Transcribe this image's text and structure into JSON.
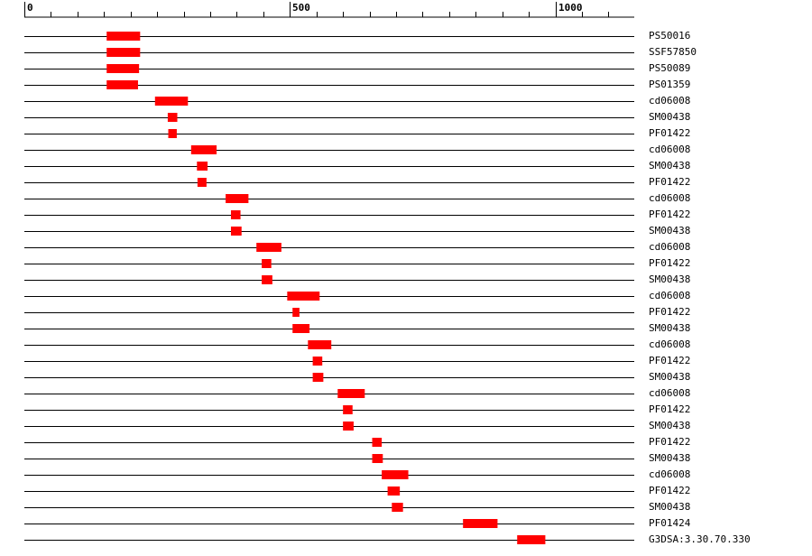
{
  "chart_data": {
    "type": "bar",
    "orientation": "horizontal-ranges",
    "x_ticks": [
      0,
      500,
      1000
    ],
    "xlim": [
      0,
      1150
    ],
    "minor_tick_step": 50,
    "bar_color": "#ff0000",
    "line_color": "#000000",
    "rows": [
      {
        "label": "PS50016",
        "start": 155,
        "end": 218
      },
      {
        "label": "SSF57850",
        "start": 155,
        "end": 218
      },
      {
        "label": "PS50089",
        "start": 155,
        "end": 216
      },
      {
        "label": "PS01359",
        "start": 155,
        "end": 214
      },
      {
        "label": "cd06008",
        "start": 246,
        "end": 308
      },
      {
        "label": "SM00438",
        "start": 270,
        "end": 288
      },
      {
        "label": "PF01422",
        "start": 271,
        "end": 287
      },
      {
        "label": "cd06008",
        "start": 314,
        "end": 362
      },
      {
        "label": "SM00438",
        "start": 325,
        "end": 345
      },
      {
        "label": "PF01422",
        "start": 326,
        "end": 343
      },
      {
        "label": "cd06008",
        "start": 379,
        "end": 422
      },
      {
        "label": "PF01422",
        "start": 389,
        "end": 407
      },
      {
        "label": "SM00438",
        "start": 389,
        "end": 409
      },
      {
        "label": "cd06008",
        "start": 437,
        "end": 484
      },
      {
        "label": "PF01422",
        "start": 447,
        "end": 465
      },
      {
        "label": "SM00438",
        "start": 447,
        "end": 467
      },
      {
        "label": "cd06008",
        "start": 495,
        "end": 556
      },
      {
        "label": "PF01422",
        "start": 505,
        "end": 518
      },
      {
        "label": "SM00438",
        "start": 505,
        "end": 537
      },
      {
        "label": "cd06008",
        "start": 534,
        "end": 578
      },
      {
        "label": "PF01422",
        "start": 543,
        "end": 561
      },
      {
        "label": "SM00438",
        "start": 543,
        "end": 563
      },
      {
        "label": "cd06008",
        "start": 590,
        "end": 641
      },
      {
        "label": "PF01422",
        "start": 600,
        "end": 618
      },
      {
        "label": "SM00438",
        "start": 600,
        "end": 620
      },
      {
        "label": "PF01422",
        "start": 655,
        "end": 673
      },
      {
        "label": "SM00438",
        "start": 655,
        "end": 675
      },
      {
        "label": "cd06008",
        "start": 673,
        "end": 723
      },
      {
        "label": "PF01422",
        "start": 684,
        "end": 707
      },
      {
        "label": "SM00438",
        "start": 692,
        "end": 713
      },
      {
        "label": "PF01424",
        "start": 826,
        "end": 891
      },
      {
        "label": "G3DSA:3.30.70.330",
        "start": 928,
        "end": 981
      }
    ]
  }
}
